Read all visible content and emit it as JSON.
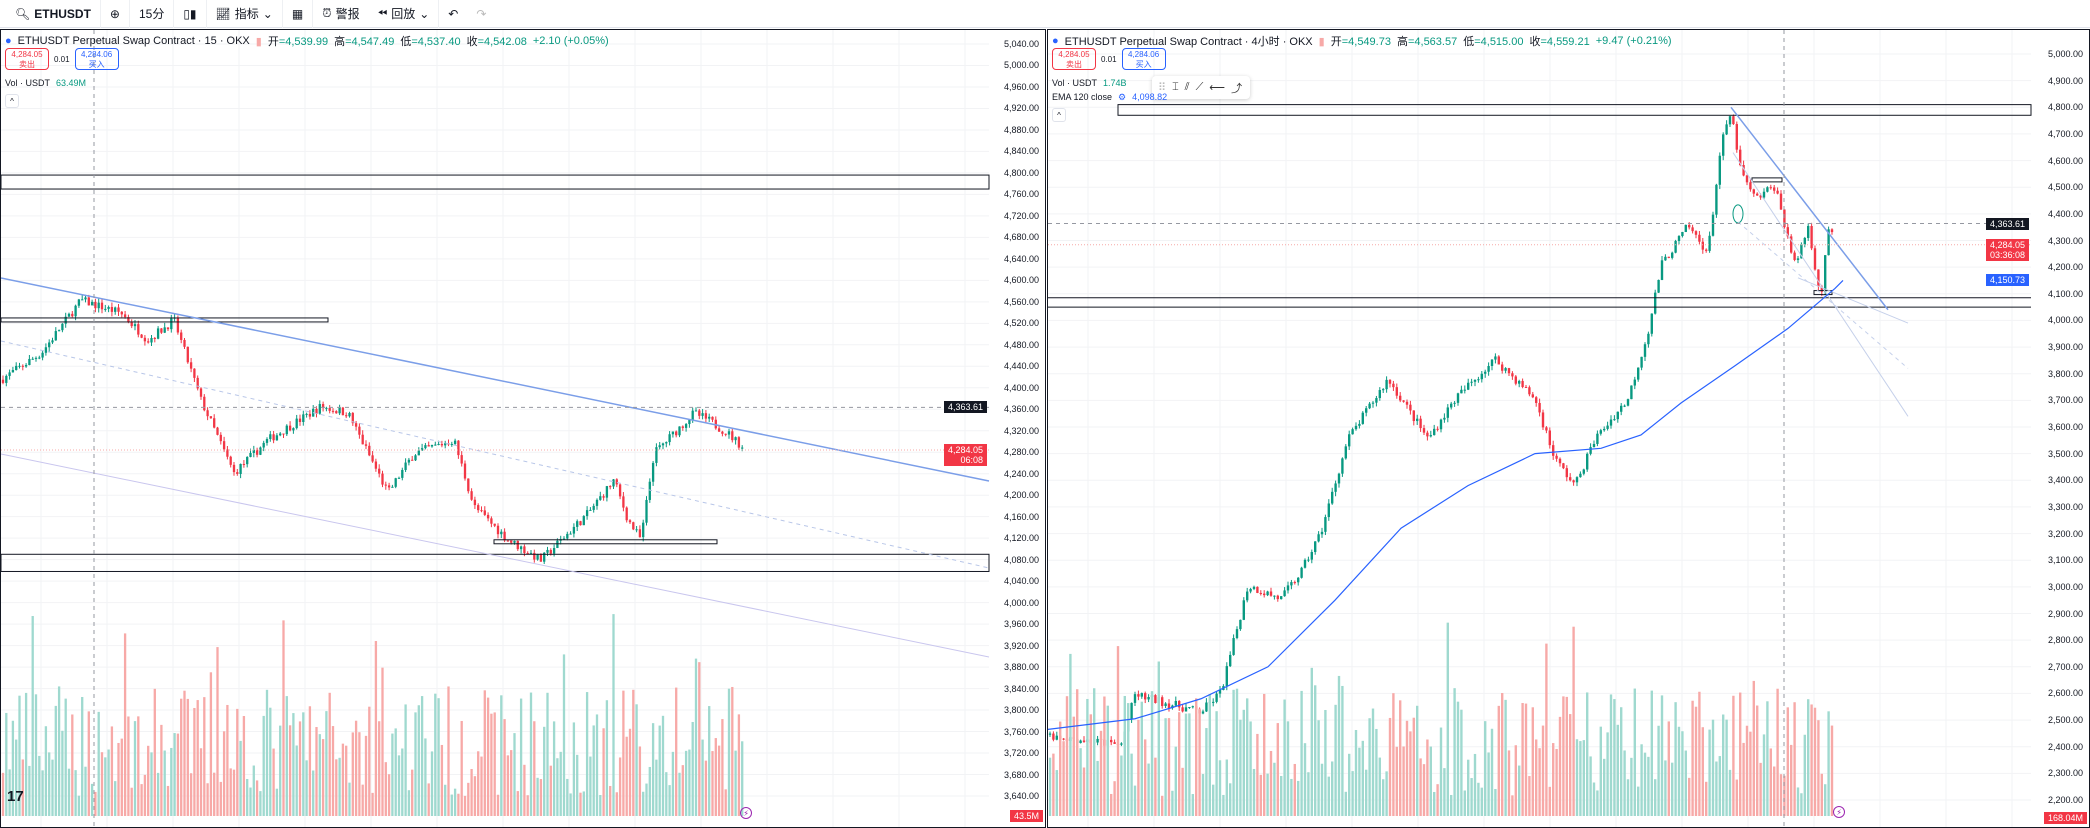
{
  "toolbar": {
    "symbol": "ETHUSDT",
    "interval": "15分",
    "indicators": "指标",
    "alert": "警报",
    "replay": "回放"
  },
  "left": {
    "title": "ETHUSDT Perpetual Swap Contract · 15 · OKX",
    "ohlc": {
      "o_label": "开",
      "o": "=4,539.99",
      "h_label": "高",
      "h": "=4,547.49",
      "l_label": "低",
      "l": "=4,537.40",
      "c_label": "收",
      "c": "=4,542.08",
      "chg": "+2.10 (+0.05%)"
    },
    "sell_price": "4,284.05",
    "sell_label": "卖出",
    "spread": "0.01",
    "buy_price": "4,284.06",
    "buy_label": "买入",
    "vol_label": "Vol · USDT",
    "vol_value": "63.49M",
    "axis": [
      "5,040.00",
      "5,000.00",
      "4,960.00",
      "4,920.00",
      "4,880.00",
      "4,840.00",
      "4,800.00",
      "4,760.00",
      "4,720.00",
      "4,680.00",
      "4,640.00",
      "4,600.00",
      "4,560.00",
      "4,520.00",
      "4,480.00",
      "4,440.00",
      "4,400.00",
      "4,360.00",
      "4,320.00",
      "4,280.00",
      "4,240.00",
      "4,200.00",
      "4,160.00",
      "4,120.00",
      "4,080.00",
      "4,040.00",
      "4,000.00",
      "3,960.00",
      "3,920.00",
      "3,880.00",
      "3,840.00",
      "3,800.00",
      "3,760.00",
      "3,720.00",
      "3,680.00",
      "3,640.00"
    ],
    "axis_range": [
      3640,
      5040
    ],
    "last_label": "4,363.61",
    "cur_label": "4,284.05",
    "cur_timer": "06:08",
    "vol_badge": "43.5M"
  },
  "right": {
    "title": "ETHUSDT Perpetual Swap Contract · 4小时 · OKX",
    "ohlc": {
      "o_label": "开",
      "o": "=4,549.73",
      "h_label": "高",
      "h": "=4,563.57",
      "l_label": "低",
      "l": "=4,515.00",
      "c_label": "收",
      "c": "=4,559.21",
      "chg": "+9.47 (+0.21%)"
    },
    "sell_price": "4,284.05",
    "sell_label": "卖出",
    "spread": "0.01",
    "buy_price": "4,284.06",
    "buy_label": "买入",
    "vol_label": "Vol · USDT",
    "vol_value": "1.74B",
    "ema_label": "EMA 120 close",
    "ema_value": "4,098.82",
    "axis": [
      "5,000.00",
      "4,900.00",
      "4,800.00",
      "4,700.00",
      "4,600.00",
      "4,500.00",
      "4,400.00",
      "4,300.00",
      "4,200.00",
      "4,100.00",
      "4,000.00",
      "3,900.00",
      "3,800.00",
      "3,700.00",
      "3,600.00",
      "3,500.00",
      "3,400.00",
      "3,300.00",
      "3,200.00",
      "3,100.00",
      "3,000.00",
      "2,900.00",
      "2,800.00",
      "2,700.00",
      "2,600.00",
      "2,500.00",
      "2,400.00",
      "2,300.00",
      "2,200.00"
    ],
    "axis_range": [
      2200,
      5000
    ],
    "last_label": "4,363.61",
    "cur_label": "4,284.05",
    "cur_timer": "03:36:08",
    "ema_badge": "4,150.73",
    "vol_badge": "168.04M"
  },
  "colors": {
    "up": "#089981",
    "down": "#f23645",
    "vol_up": "#9fd9cf",
    "vol_down": "#f7a9a7",
    "trend": "#7b9ee8",
    "ema": "#2962ff"
  }
}
